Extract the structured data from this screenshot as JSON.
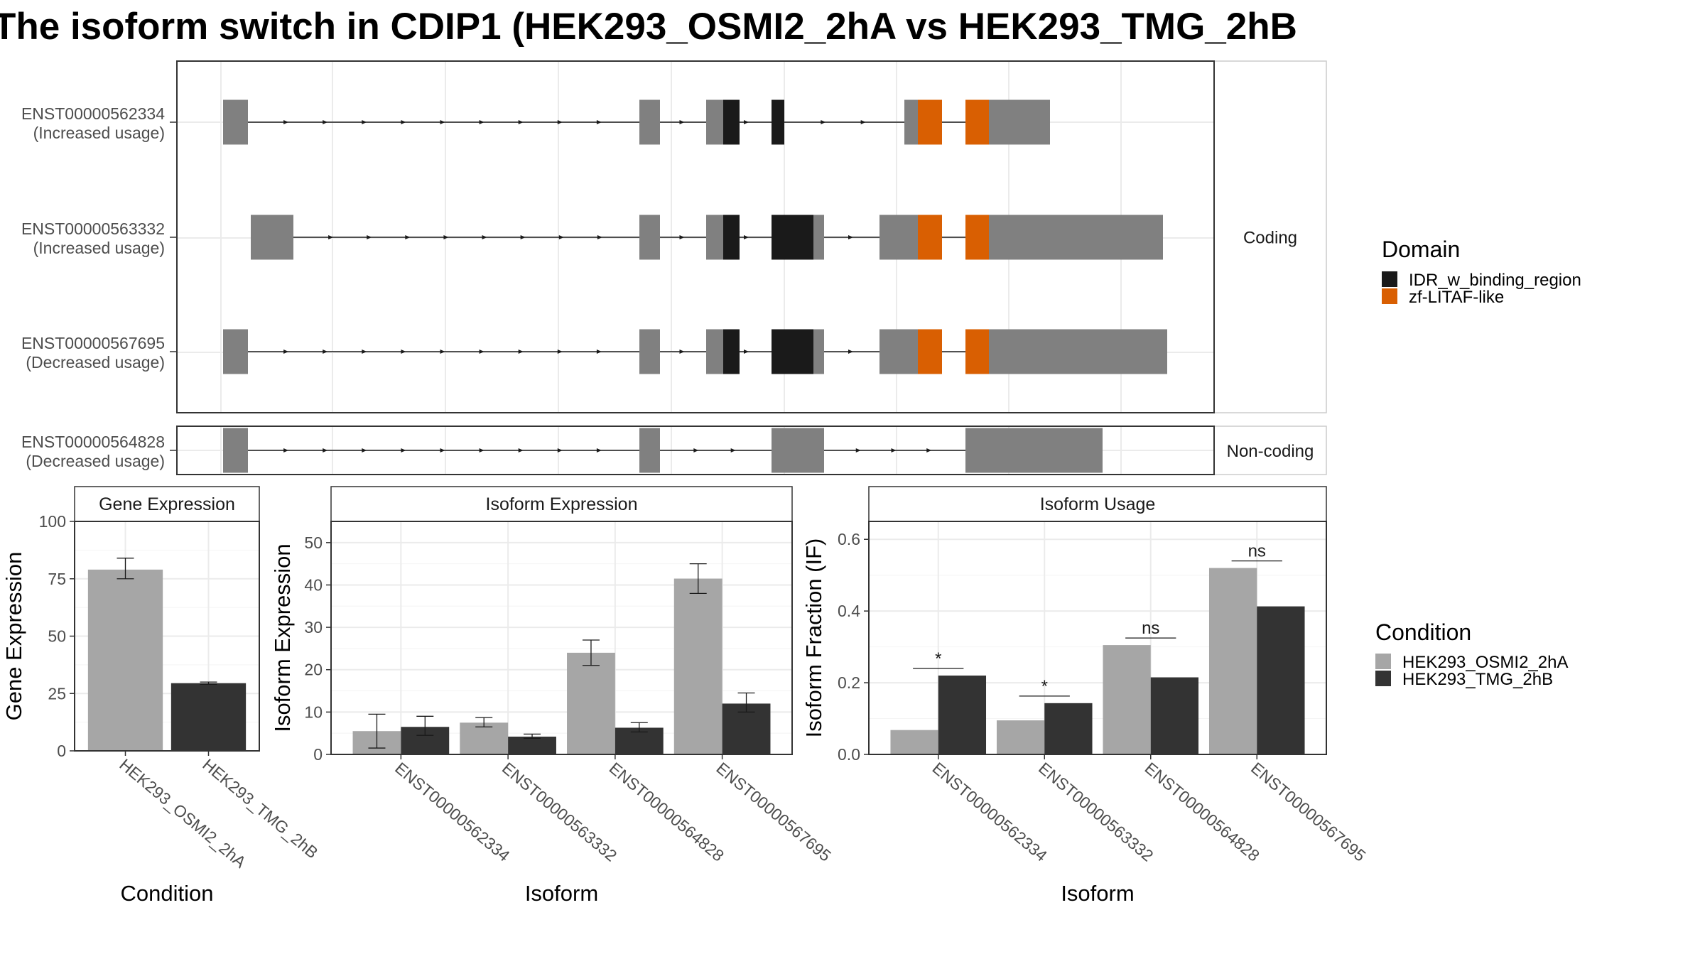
{
  "title": "The isoform switch in CDIP1 (HEK293_OSMI2_2hA vs HEK293_TMG_2hB",
  "legend_domain": {
    "title": "Domain",
    "items": [
      {
        "label": "IDR_w_binding_region",
        "color": "#1a1a1a"
      },
      {
        "label": "zf-LITAF-like",
        "color": "#d95f02"
      }
    ]
  },
  "legend_condition": {
    "title": "Condition",
    "items": [
      {
        "label": "HEK293_OSMI2_2hA",
        "color": "#a6a6a6"
      },
      {
        "label": "HEK293_TMG_2hB",
        "color": "#333333"
      }
    ]
  },
  "chart_data": [
    {
      "type": "gene-structure",
      "facets": [
        "Coding",
        "Non-coding"
      ],
      "transcripts": [
        {
          "id": "ENST00000562334",
          "label": "ENST00000562334",
          "status": "(Increased usage)",
          "facet": "Coding"
        },
        {
          "id": "ENST00000563332",
          "label": "ENST00000563332",
          "status": "(Increased usage)",
          "facet": "Coding"
        },
        {
          "id": "ENST00000567695",
          "label": "ENST00000567695",
          "status": "(Decreased usage)",
          "facet": "Coding"
        },
        {
          "id": "ENST00000564828",
          "label": "ENST00000564828",
          "status": "(Decreased usage)",
          "facet": "Non-coding"
        }
      ]
    },
    {
      "type": "bar",
      "title": "Gene Expression",
      "xlabel": "Condition",
      "ylabel": "Gene Expression",
      "ylim": [
        0,
        100
      ],
      "yticks": [
        0,
        25,
        50,
        75,
        100
      ],
      "categories": [
        "HEK293_OSMI2_2hA",
        "HEK293_TMG_2hB"
      ],
      "values": [
        79,
        29.5
      ],
      "errors": [
        [
          75,
          84
        ],
        [
          29,
          30
        ]
      ]
    },
    {
      "type": "bar",
      "title": "Isoform Expression",
      "xlabel": "Isoform",
      "ylabel": "Isoform Expression",
      "ylim": [
        0,
        55
      ],
      "yticks": [
        0,
        10,
        20,
        30,
        40,
        50
      ],
      "categories": [
        "ENST00000562334",
        "ENST00000563332",
        "ENST00000564828",
        "ENST00000567695"
      ],
      "series": [
        {
          "name": "HEK293_OSMI2_2hA",
          "values": [
            5.5,
            7.5,
            24,
            41.5
          ],
          "errors": [
            [
              1.5,
              9.5
            ],
            [
              6.5,
              8.7
            ],
            [
              21,
              27
            ],
            [
              38,
              45
            ]
          ]
        },
        {
          "name": "HEK293_TMG_2hB",
          "values": [
            6.5,
            4.2,
            6.3,
            12
          ],
          "errors": [
            [
              4.5,
              9
            ],
            [
              3.8,
              4.8
            ],
            [
              5.3,
              7.5
            ],
            [
              10,
              14.5
            ]
          ]
        }
      ]
    },
    {
      "type": "bar",
      "title": "Isoform Usage",
      "xlabel": "Isoform",
      "ylabel": "Isoform Fraction (IF)",
      "ylim": [
        0,
        0.65
      ],
      "yticks": [
        "0.0",
        "0.2",
        "0.4",
        "0.6"
      ],
      "categories": [
        "ENST00000562334",
        "ENST00000563332",
        "ENST00000564828",
        "ENST00000567695"
      ],
      "series": [
        {
          "name": "HEK293_OSMI2_2hA",
          "values": [
            0.068,
            0.095,
            0.305,
            0.52
          ]
        },
        {
          "name": "HEK293_TMG_2hB",
          "values": [
            0.22,
            0.143,
            0.215,
            0.413
          ]
        }
      ],
      "significance": [
        "*",
        "*",
        "ns",
        "ns"
      ]
    }
  ]
}
